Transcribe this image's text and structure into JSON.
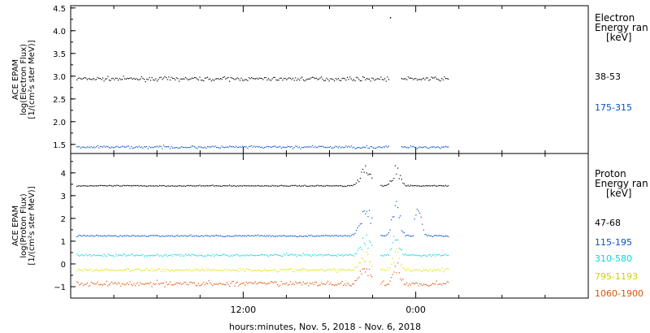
{
  "chart_data": {
    "type": "scatter",
    "xlabel": "hours:minutes, Nov.  5, 2018 - Nov.  6, 2018",
    "x_ticks": [
      {
        "label": "12:00",
        "hour": 12
      },
      {
        "label": "0:00",
        "hour": 24
      }
    ],
    "xlim_hours": [
      0,
      36
    ],
    "data_end_hour": 26.3,
    "panels": [
      {
        "id": "electron",
        "ylabel": [
          "ACE EPAM",
          "log(Electron Flux)",
          "[1/(cm²s ster MeV)]"
        ],
        "ylim": [
          1.3,
          4.55
        ],
        "yticks": [
          1.5,
          2.0,
          2.5,
          3.0,
          3.5,
          4.0,
          4.5
        ],
        "ytick_labels": [
          "1.5",
          "2.0",
          "2.5",
          "3.0",
          "3.5",
          "4.0",
          "4.5"
        ],
        "legend_title": [
          "Electron",
          "Energy ran",
          "[keV]"
        ],
        "series": [
          {
            "name": "38-53",
            "color": "#000000",
            "base": 2.95,
            "noise": 0.035
          },
          {
            "name": "175-315",
            "color": "#0050c8",
            "base": 1.45,
            "noise": 0.025
          }
        ],
        "outliers": [
          {
            "hour": 22.2,
            "value": 4.3,
            "series": 0
          }
        ],
        "gaps": [
          [
            22.1,
            22.9
          ]
        ]
      },
      {
        "id": "proton",
        "ylabel": [
          "ACE EPAM",
          "log(Proton Flux)",
          "[1/(cm²s ster MeV)]"
        ],
        "ylim": [
          -1.5,
          4.85
        ],
        "yticks": [
          -1,
          0,
          1,
          2,
          3,
          4
        ],
        "ytick_labels": [
          "−1",
          "0",
          "1",
          "2",
          "3",
          "4"
        ],
        "legend_title": [
          "Proton",
          "Energy ran",
          "[keV]"
        ],
        "series": [
          {
            "name": "47-68",
            "color": "#000000",
            "base": 3.45,
            "noise": 0.02
          },
          {
            "name": "115-195",
            "color": "#0050c8",
            "base": 1.25,
            "noise": 0.03
          },
          {
            "name": "310-580",
            "color": "#00d8e0",
            "base": 0.4,
            "noise": 0.05
          },
          {
            "name": "795-1193",
            "color": "#e0e000",
            "base": -0.25,
            "noise": 0.06
          },
          {
            "name": "1060-1900",
            "color": "#e05000",
            "base": -0.85,
            "noise": 0.1
          }
        ],
        "gaps": [
          [
            21.0,
            21.5
          ]
        ]
      }
    ],
    "grid": false,
    "legend_position": "right"
  }
}
